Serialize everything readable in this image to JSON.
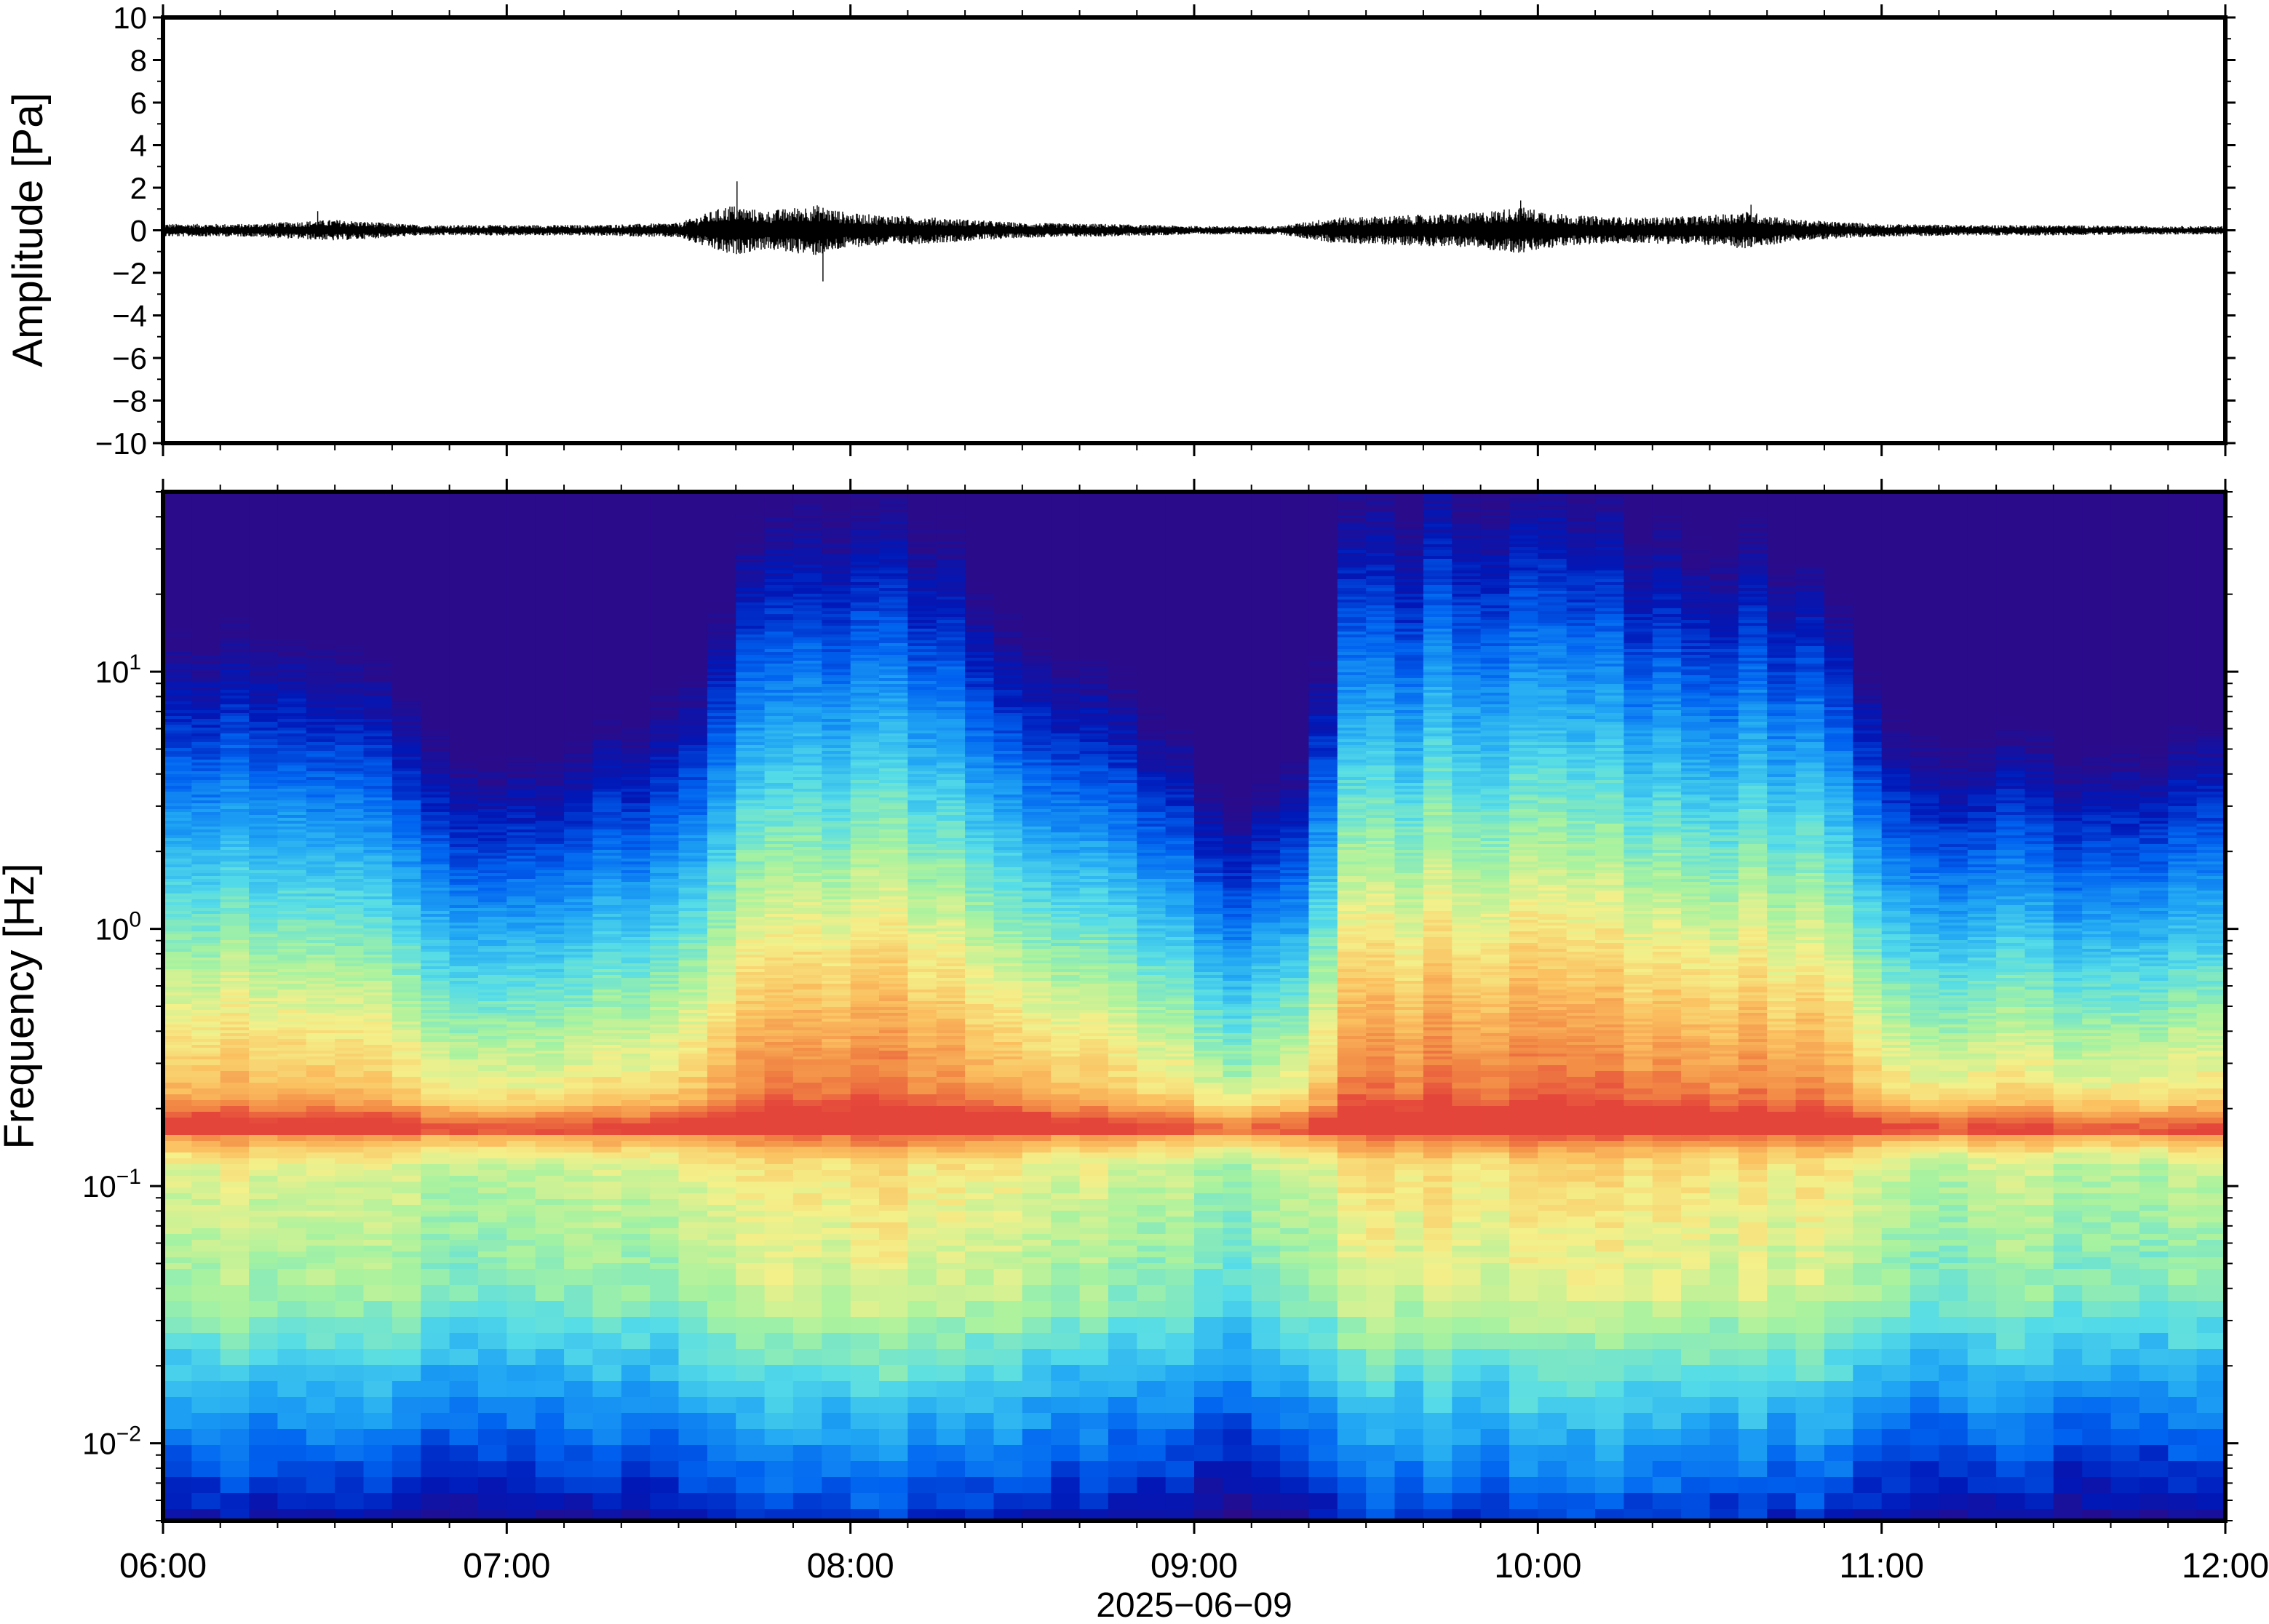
{
  "chart_data": [
    {
      "type": "line",
      "panel": "waveform",
      "ylabel": "Amplitude [Pa]",
      "ylim": [
        -10,
        10
      ],
      "yticks": [
        10,
        8,
        6,
        4,
        2,
        0,
        -2,
        -4,
        -6,
        -8,
        -10
      ],
      "ytick_labels": [
        "10",
        "8",
        "6",
        "4",
        "2",
        "0",
        "−2",
        "−4",
        "−6",
        "−8",
        "−10"
      ],
      "x_range_hours": [
        6,
        12
      ],
      "series": [
        {
          "color": "#000000",
          "envelope_hours": [
            6.0,
            6.25,
            6.5,
            6.75,
            7.0,
            7.25,
            7.5,
            7.65,
            7.75,
            7.9,
            8.0,
            8.25,
            8.5,
            8.75,
            9.0,
            9.25,
            9.4,
            9.6,
            9.8,
            9.95,
            10.1,
            10.3,
            10.5,
            10.6,
            10.75,
            11.0,
            11.25,
            11.5,
            11.75,
            12.0
          ],
          "envelope_amplitude_pa": [
            0.3,
            0.3,
            0.5,
            0.25,
            0.25,
            0.25,
            0.35,
            1.2,
            0.9,
            1.2,
            0.8,
            0.6,
            0.35,
            0.3,
            0.2,
            0.2,
            0.6,
            0.7,
            0.8,
            1.1,
            0.7,
            0.6,
            0.7,
            0.9,
            0.5,
            0.3,
            0.25,
            0.25,
            0.2,
            0.2
          ],
          "peaks": [
            {
              "x_hours": 7.67,
              "y_pa": 2.3
            },
            {
              "x_hours": 7.92,
              "y_pa": -2.4
            },
            {
              "x_hours": 6.45,
              "y_pa": 0.9
            },
            {
              "x_hours": 9.95,
              "y_pa": 1.4
            },
            {
              "x_hours": 10.62,
              "y_pa": 1.2
            }
          ]
        }
      ]
    },
    {
      "type": "heatmap",
      "panel": "spectrogram",
      "ylabel": "Frequency [Hz]",
      "yscale": "log",
      "ylim": [
        0.005,
        50
      ],
      "ytick_labels": [
        {
          "base": "10",
          "exp": "1",
          "value": 10
        },
        {
          "base": "10",
          "exp": "0",
          "value": 1
        },
        {
          "base": "10",
          "exp": "−1",
          "value": 0.1
        },
        {
          "base": "10",
          "exp": "−2",
          "value": 0.01
        }
      ],
      "colormap": "jet",
      "colormap_stops": [
        "#2a0b8a",
        "#0018b8",
        "#0062f0",
        "#20a6f4",
        "#55dce8",
        "#a6f2a0",
        "#f4f08a",
        "#fbc060",
        "#f28a45",
        "#e4443a"
      ],
      "x_range_hours": [
        6,
        12
      ],
      "activity_profile_hours": [
        6.0,
        6.2,
        6.4,
        6.6,
        6.85,
        7.1,
        7.3,
        7.45,
        7.6,
        7.65,
        8.0,
        8.3,
        8.4,
        8.6,
        8.9,
        9.05,
        9.2,
        9.35,
        9.4,
        9.7,
        10.0,
        10.3,
        10.5,
        10.7,
        10.9,
        11.0,
        11.2,
        11.5,
        12.0
      ],
      "activity_profile_level": [
        0.55,
        0.5,
        0.5,
        0.45,
        0.2,
        0.15,
        0.2,
        0.35,
        0.4,
        0.8,
        0.85,
        0.75,
        0.55,
        0.5,
        0.35,
        0.05,
        0.05,
        0.1,
        0.8,
        0.85,
        0.85,
        0.75,
        0.7,
        0.75,
        0.6,
        0.3,
        0.2,
        0.2,
        0.25
      ],
      "microseism_band_hz": 0.17
    }
  ],
  "xaxis": {
    "tick_labels": [
      "06:00",
      "07:00",
      "08:00",
      "09:00",
      "10:00",
      "11:00",
      "12:00"
    ],
    "label": "2025−06−09"
  }
}
